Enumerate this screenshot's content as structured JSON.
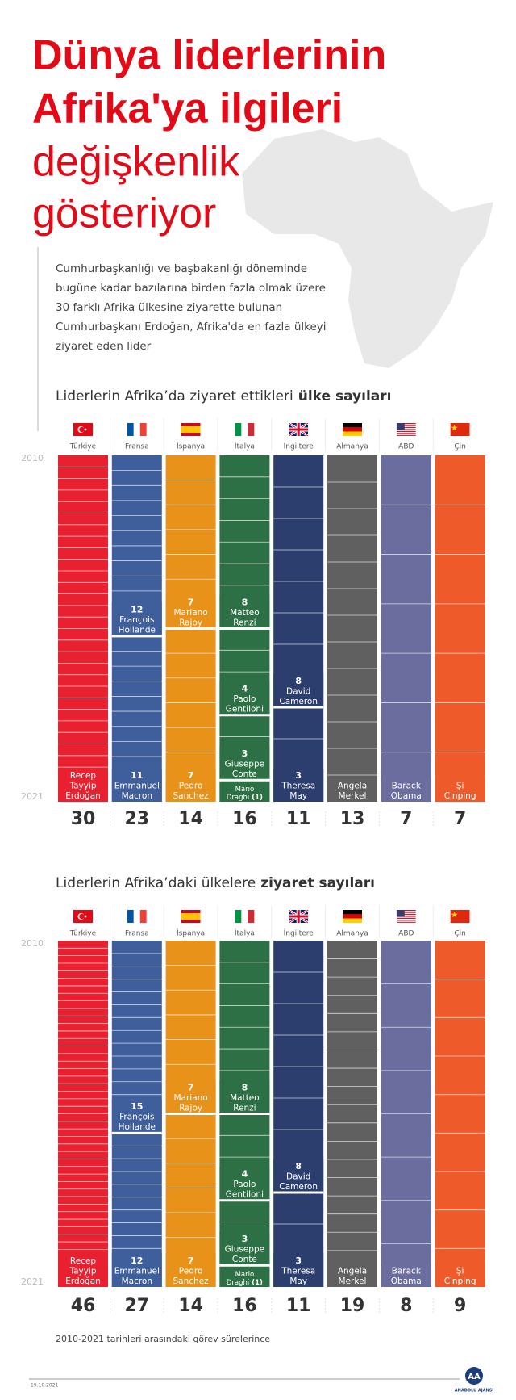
{
  "title": {
    "lines": [
      "Dünya liderlerinin",
      "Afrika'ya ilgileri",
      "değişkenlik",
      "gösteriyor"
    ]
  },
  "intro": {
    "lines": [
      "Cumhurbaşkanlığı ve başbakanlığı döneminde",
      "bugüne kadar bazılarına birden fazla olmak üzere",
      "30 farklı Afrika ülkesine ziyarette bulunan",
      "Cumhurbaşkanı Erdoğan, Afrika'da en fazla ülkeyi",
      "ziyaret eden lider"
    ]
  },
  "sections": [
    {
      "heading": {
        "normal": "Liderlerin Afrika’da ziyaret ettikleri",
        "bold": "ülke sayıları"
      },
      "start_year": "2010",
      "end_year": "2021",
      "columns": [
        {
          "country": "Türkiye",
          "total": 30,
          "segments": [
            {
              "name": [
                "Recep",
                "Tayyip",
                "Erdoğan"
              ]
            }
          ]
        },
        {
          "country": "Fransa",
          "total": 23,
          "segments": [
            {
              "count": 12,
              "name": [
                "François",
                "Hollande"
              ]
            },
            {
              "count": 11,
              "name": [
                "Emmanuel",
                "Macron"
              ]
            }
          ]
        },
        {
          "country": "İspanya",
          "total": 14,
          "segments": [
            {
              "count": 7,
              "name": [
                "Mariano",
                "Rajoy"
              ]
            },
            {
              "count": 7,
              "name": [
                "Pedro",
                "Sanchez"
              ]
            }
          ]
        },
        {
          "country": "İtalya",
          "total": 16,
          "segments": [
            {
              "count": 8,
              "name": [
                "Matteo",
                "Renzi"
              ]
            },
            {
              "count": 4,
              "name": [
                "Paolo",
                "Gentiloni"
              ]
            },
            {
              "count": 3,
              "name": [
                "Giuseppe",
                "Conte"
              ]
            },
            {
              "count": 1,
              "count_label": "(1)",
              "name": [
                "Mario",
                "Draghi"
              ]
            }
          ]
        },
        {
          "country": "İngiltere",
          "total": 11,
          "segments": [
            {
              "count": 8,
              "name": [
                "David",
                "Cameron"
              ]
            },
            {
              "count": 3,
              "name": [
                "Theresa",
                "May"
              ]
            }
          ]
        },
        {
          "country": "Almanya",
          "total": 13,
          "segments": [
            {
              "name": [
                "Angela",
                "Merkel"
              ]
            }
          ]
        },
        {
          "country": "ABD",
          "total": 7,
          "segments": [
            {
              "name": [
                "Barack",
                "Obama"
              ]
            }
          ]
        },
        {
          "country": "Çin",
          "total": 7,
          "segments": [
            {
              "name": [
                "Şi",
                "Cinping"
              ]
            }
          ]
        }
      ]
    },
    {
      "heading": {
        "normal": "Liderlerin Afrika’daki ülkelere",
        "bold": "ziyaret sayıları"
      },
      "start_year": "2010",
      "end_year": "2021",
      "columns": [
        {
          "country": "Türkiye",
          "total": 46,
          "segments": [
            {
              "name": [
                "Recep",
                "Tayyip",
                "Erdoğan"
              ]
            }
          ]
        },
        {
          "country": "Fransa",
          "total": 27,
          "segments": [
            {
              "count": 15,
              "name": [
                "François",
                "Hollande"
              ]
            },
            {
              "count": 12,
              "name": [
                "Emmanuel",
                "Macron"
              ]
            }
          ]
        },
        {
          "country": "İspanya",
          "total": 14,
          "segments": [
            {
              "count": 7,
              "name": [
                "Mariano",
                "Rajoy"
              ]
            },
            {
              "count": 7,
              "name": [
                "Pedro",
                "Sanchez"
              ]
            }
          ]
        },
        {
          "country": "İtalya",
          "total": 16,
          "segments": [
            {
              "count": 8,
              "name": [
                "Matteo",
                "Renzi"
              ]
            },
            {
              "count": 4,
              "name": [
                "Paolo",
                "Gentiloni"
              ]
            },
            {
              "count": 3,
              "name": [
                "Giuseppe",
                "Conte"
              ]
            },
            {
              "count": 1,
              "count_label": "(1)",
              "name": [
                "Mario",
                "Draghi"
              ]
            }
          ]
        },
        {
          "country": "İngiltere",
          "total": 11,
          "segments": [
            {
              "count": 8,
              "name": [
                "David",
                "Cameron"
              ]
            },
            {
              "count": 3,
              "name": [
                "Theresa",
                "May"
              ]
            }
          ]
        },
        {
          "country": "Almanya",
          "total": 19,
          "segments": [
            {
              "name": [
                "Angela",
                "Merkel"
              ]
            }
          ]
        },
        {
          "country": "ABD",
          "total": 8,
          "segments": [
            {
              "name": [
                "Barack",
                "Obama"
              ]
            }
          ]
        },
        {
          "country": "Çin",
          "total": 9,
          "segments": [
            {
              "name": [
                "Şi",
                "Cinping"
              ]
            }
          ]
        }
      ]
    }
  ],
  "footnote": "2010-2021 tarihleri arasındaki görev sürelerince",
  "date": "19.10.2021",
  "logo": {
    "mark": "AA",
    "name": "ANADOLU AJANSI"
  }
}
